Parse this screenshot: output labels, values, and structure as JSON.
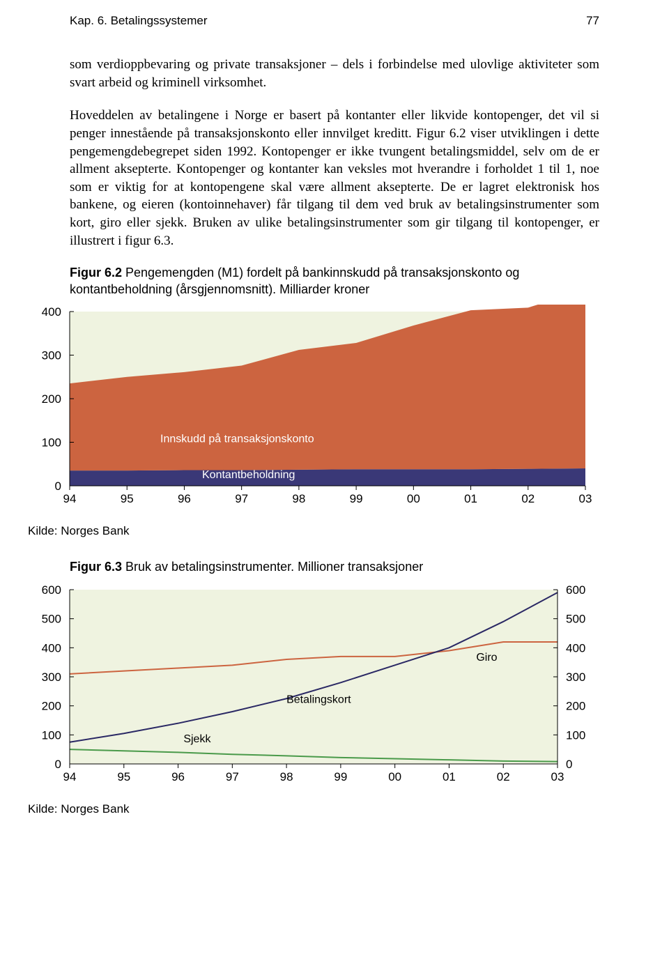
{
  "header": {
    "chapter": "Kap. 6. Betalingssystemer",
    "page": "77"
  },
  "para1": "som verdioppbevaring og private transaksjoner – dels i forbindelse med ulovlige aktiviteter som svart arbeid og kriminell virksomhet.",
  "para2": "Hoveddelen av betalingene i Norge er basert på kontanter eller likvide kontopenger, det vil si penger innestående på transaksjonskonto eller innvilget kreditt. Figur 6.2 viser utviklingen i dette pengemengdebegrepet siden 1992. Kontopenger er ikke tvungent betalingsmiddel, selv om de er allment aksepterte. Kontopenger og kontanter kan veksles mot hverandre i forholdet 1 til 1, noe som er viktig for at kontopengene skal være allment aksepterte. De er lagret elektronisk hos bankene, og eieren (kontoinnehaver) får tilgang til dem ved bruk av betalingsinstrumenter som kort, giro eller sjekk. Bruken av ulike betalingsinstrumenter som gir tilgang til kontopenger, er illustrert i figur 6.3.",
  "fig62": {
    "caption_bold": "Figur 6.2",
    "caption_rest": " Pengemengden (M1) fordelt på bankinnskudd på transaksjonskonto og kontantbeholdning (årsgjennomsnitt). Milliarder kroner",
    "type": "area",
    "background_color": "#eff3e0",
    "series1_color": "#cc6440",
    "series2_color": "#3a3877",
    "axis_color": "#000000",
    "x_labels": [
      "94",
      "95",
      "96",
      "97",
      "98",
      "99",
      "00",
      "01",
      "02",
      "03"
    ],
    "y_labels": [
      "0",
      "100",
      "200",
      "300",
      "400"
    ],
    "y_max": 400,
    "kontant": [
      35,
      35,
      36,
      36,
      37,
      38,
      38,
      38,
      39,
      40
    ],
    "innskudd": [
      200,
      215,
      225,
      240,
      275,
      290,
      330,
      365,
      370,
      410
    ],
    "label1": "Innskudd på transaksjonskonto",
    "label2": "Kontantbeholdning",
    "source": "Kilde: Norges Bank"
  },
  "fig63": {
    "caption_bold": "Figur 6.3",
    "caption_rest": " Bruk av betalingsinstrumenter. Millioner transaksjoner",
    "type": "line",
    "background_color": "#eff3e0",
    "axis_color": "#000000",
    "x_labels": [
      "94",
      "95",
      "96",
      "97",
      "98",
      "99",
      "00",
      "01",
      "02",
      "03"
    ],
    "y_labels_left": [
      "0",
      "100",
      "200",
      "300",
      "400",
      "500",
      "600"
    ],
    "y_labels_right": [
      "0",
      "100",
      "200",
      "300",
      "400",
      "500",
      "600"
    ],
    "y_max": 600,
    "series": {
      "giro": {
        "color": "#cc6440",
        "width": 2,
        "values": [
          310,
          320,
          330,
          340,
          360,
          370,
          370,
          390,
          420,
          420
        ]
      },
      "betalingskort": {
        "color": "#2a2864",
        "width": 2,
        "values": [
          75,
          105,
          140,
          180,
          225,
          280,
          340,
          400,
          490,
          590
        ]
      },
      "sjekk": {
        "color": "#4a9a4a",
        "width": 2,
        "values": [
          50,
          45,
          40,
          33,
          28,
          22,
          18,
          14,
          10,
          8
        ]
      }
    },
    "label_giro": "Giro",
    "label_kort": "Betalingskort",
    "label_sjekk": "Sjekk",
    "source": "Kilde: Norges Bank"
  }
}
